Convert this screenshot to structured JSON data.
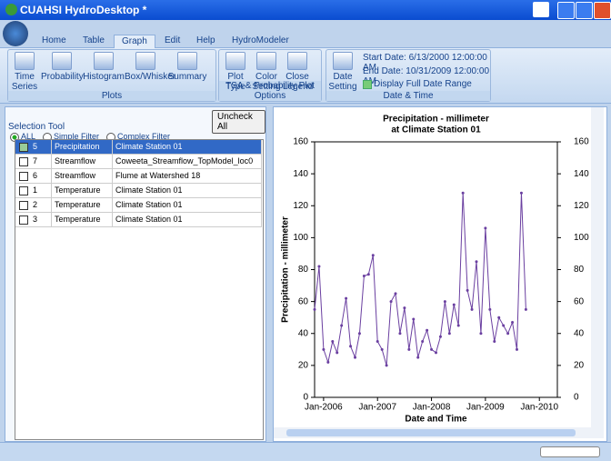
{
  "window": {
    "title": "CUAHSI HydroDesktop *"
  },
  "tabs": [
    "Home",
    "Table",
    "Graph",
    "Edit",
    "Help",
    "HydroModeler"
  ],
  "active_tab": 2,
  "ribbon": {
    "groups": [
      {
        "label": "Plots",
        "buttons": [
          "Time Series",
          "Probability",
          "Histogram",
          "Box/Whisker",
          "Summary"
        ]
      },
      {
        "label": "TSA & Probability Plot Options",
        "buttons": [
          "Plot Type",
          "Color Setting",
          "Close Legend"
        ]
      },
      {
        "label": "Date & Time",
        "buttons": [
          "Date Setting"
        ]
      }
    ],
    "start_date": "Start Date: 6/13/2000 12:00:00 AM",
    "end_date": "End Date:  10/31/2009 12:00:00 AM",
    "full_range": "Display Full Date Range",
    "full_range_checked": true
  },
  "selection": {
    "title": "Selection Tool",
    "uncheck": "Uncheck All",
    "filters": [
      "ALL",
      "Simple Filter",
      "Complex Filter"
    ],
    "selected_filter": 0,
    "rows": [
      [
        "5",
        "Precipitation",
        "Climate Station 01"
      ],
      [
        "7",
        "Streamflow",
        "Coweeta_Streamflow_TopModel_loc0"
      ],
      [
        "6",
        "Streamflow",
        "Flume at Watershed 18"
      ],
      [
        "1",
        "Temperature",
        "Climate Station 01"
      ],
      [
        "2",
        "Temperature",
        "Climate Station 01"
      ],
      [
        "3",
        "Temperature",
        "Climate Station 01"
      ]
    ],
    "checked": [
      true,
      false,
      false,
      false,
      false,
      false
    ],
    "selected_row": 0
  },
  "chart_data": {
    "type": "line",
    "title": "Precipitation - millimeter",
    "subtitle": "at Climate Station 01",
    "x_label": "Date and Time",
    "y_label": "Precipitation - millimeter",
    "color": "#6a3fa0",
    "x": [
      "2005-11",
      "2005-12",
      "2006-01",
      "2006-02",
      "2006-03",
      "2006-04",
      "2006-05",
      "2006-06",
      "2006-07",
      "2006-08",
      "2006-09",
      "2006-10",
      "2006-11",
      "2006-12",
      "2007-01",
      "2007-02",
      "2007-03",
      "2007-04",
      "2007-05",
      "2007-06",
      "2007-07",
      "2007-08",
      "2007-09",
      "2007-10",
      "2007-11",
      "2007-12",
      "2008-01",
      "2008-02",
      "2008-03",
      "2008-04",
      "2008-05",
      "2008-06",
      "2008-07",
      "2008-08",
      "2008-09",
      "2008-10",
      "2008-11",
      "2008-12",
      "2009-01",
      "2009-02",
      "2009-03",
      "2009-04",
      "2009-05",
      "2009-06",
      "2009-07",
      "2009-08",
      "2009-09",
      "2009-10"
    ],
    "values": [
      55,
      82,
      30,
      22,
      35,
      28,
      45,
      62,
      32,
      25,
      40,
      76,
      77,
      89,
      35,
      30,
      20,
      60,
      65,
      40,
      56,
      30,
      49,
      25,
      35,
      42,
      30,
      28,
      38,
      60,
      40,
      58,
      45,
      128,
      67,
      55,
      85,
      40,
      106,
      55,
      35,
      50,
      45,
      40,
      47,
      30,
      128,
      55
    ],
    "xlim": [
      "2005-11",
      "2010-05"
    ],
    "xticks": [
      {
        "value": "2006-01",
        "label": "Jan-2006"
      },
      {
        "value": "2007-01",
        "label": "Jan-2007"
      },
      {
        "value": "2008-01",
        "label": "Jan-2008"
      },
      {
        "value": "2009-01",
        "label": "Jan-2009"
      },
      {
        "value": "2010-01",
        "label": "Jan-2010"
      }
    ],
    "ylim": [
      0,
      160
    ],
    "yticks": [
      0,
      20,
      40,
      60,
      80,
      100,
      120,
      140,
      160
    ],
    "y2lim": [
      0,
      160
    ],
    "y2ticks": [
      0,
      20,
      40,
      60,
      80,
      100,
      120,
      140,
      160
    ]
  }
}
